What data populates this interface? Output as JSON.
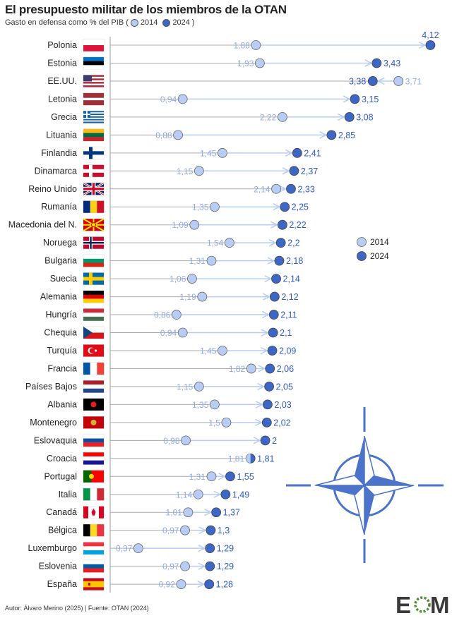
{
  "title": "El presupuesto militar de los miembros de la OTAN",
  "subtitle": {
    "prefix": "Gasto en defensa como % del PIB (",
    "label_2014": "2014",
    "label_2024": "2024",
    "suffix": ")"
  },
  "footer": "Autor: Álvaro Merino (2025) | Fuente: OTAN (2024)",
  "logo": "EOM",
  "colors": {
    "c2014": "#b7cdf5",
    "c2024": "#3d67c4",
    "label2014": "#8fa9e8",
    "label2024": "#2f5bc8",
    "axis": "#999999",
    "nato": "#4a73c9",
    "logo_text": "#3a3a3a",
    "logo_ring": "#4e8a2e"
  },
  "chart_data": {
    "type": "dumbbell",
    "title": "El presupuesto militar de los miembros de la OTAN",
    "unit": "% del PIB",
    "legend": {
      "position": "right",
      "entries": [
        "2014",
        "2024"
      ]
    },
    "series_names": [
      "2014",
      "2024"
    ],
    "rows": [
      {
        "country": "Polonia",
        "v2014": "1,88",
        "v2024": "4,12",
        "flag": {
          "dir": "h",
          "c": [
            "#ffffff",
            "#dc143c"
          ]
        }
      },
      {
        "country": "Estonia",
        "v2014": "1,93",
        "v2024": "3,43",
        "flag": {
          "dir": "h",
          "c": [
            "#0072ce",
            "#000000",
            "#ffffff"
          ]
        }
      },
      {
        "country": "EE.UU.",
        "v2014": "3,71",
        "v2024": "3,38",
        "flag": {
          "dir": "us",
          "c": [
            "#b22234",
            "#ffffff",
            "#3c3b6e"
          ]
        }
      },
      {
        "country": "Letonia",
        "v2014": "0,94",
        "v2024": "3,15",
        "flag": {
          "dir": "h",
          "c": [
            "#9e3039",
            "#9e3039",
            "#ffffff",
            "#9e3039",
            "#9e3039"
          ]
        }
      },
      {
        "country": "Grecia",
        "v2014": "2,22",
        "v2024": "3,08",
        "flag": {
          "dir": "gr",
          "c": [
            "#0d5eaf",
            "#ffffff"
          ]
        }
      },
      {
        "country": "Lituania",
        "v2014": "0,88",
        "v2024": "2,85",
        "flag": {
          "dir": "h",
          "c": [
            "#fdb913",
            "#006a44",
            "#c1272d"
          ]
        }
      },
      {
        "country": "Finlandia",
        "v2014": "1,45",
        "v2024": "2,41",
        "flag": {
          "dir": "nordic",
          "c": [
            "#ffffff",
            "#003580"
          ]
        }
      },
      {
        "country": "Dinamarca",
        "v2014": "1,15",
        "v2024": "2,37",
        "flag": {
          "dir": "nordic",
          "c": [
            "#c8102e",
            "#ffffff"
          ]
        }
      },
      {
        "country": "Reino Unido",
        "v2014": "2,14",
        "v2024": "2,33",
        "flag": {
          "dir": "uk",
          "c": [
            "#012169",
            "#ffffff",
            "#c8102e"
          ]
        }
      },
      {
        "country": "Rumanía",
        "v2014": "1,35",
        "v2024": "2,25",
        "flag": {
          "dir": "v",
          "c": [
            "#002b7f",
            "#fcd116",
            "#ce1126"
          ]
        }
      },
      {
        "country": "Macedonia del N.",
        "v2014": "1,09",
        "v2024": "2,22",
        "flag": {
          "dir": "sun",
          "c": [
            "#d20000",
            "#ffe600"
          ]
        }
      },
      {
        "country": "Noruega",
        "v2014": "1,54",
        "v2024": "2,2",
        "flag": {
          "dir": "nordic2",
          "c": [
            "#ba0c2f",
            "#ffffff",
            "#00205b"
          ]
        }
      },
      {
        "country": "Bulgaria",
        "v2014": "1,31",
        "v2024": "2,18",
        "flag": {
          "dir": "h",
          "c": [
            "#ffffff",
            "#00966e",
            "#d62612"
          ]
        }
      },
      {
        "country": "Suecia",
        "v2014": "1,06",
        "v2024": "2,14",
        "flag": {
          "dir": "nordic",
          "c": [
            "#006aa7",
            "#fecc00"
          ]
        }
      },
      {
        "country": "Alemania",
        "v2014": "1,19",
        "v2024": "2,12",
        "flag": {
          "dir": "h",
          "c": [
            "#000000",
            "#dd0000",
            "#ffce00"
          ]
        }
      },
      {
        "country": "Hungría",
        "v2014": "0,86",
        "v2024": "2,11",
        "flag": {
          "dir": "h",
          "c": [
            "#ce2939",
            "#ffffff",
            "#477050"
          ]
        }
      },
      {
        "country": "Chequia",
        "v2014": "0,94",
        "v2024": "2,1",
        "flag": {
          "dir": "cz",
          "c": [
            "#ffffff",
            "#d7141a",
            "#11457e"
          ]
        }
      },
      {
        "country": "Turquía",
        "v2014": "1,45",
        "v2024": "2,09",
        "flag": {
          "dir": "tr",
          "c": [
            "#e30a17",
            "#ffffff"
          ]
        }
      },
      {
        "country": "Francia",
        "v2014": "1,82",
        "v2024": "2,06",
        "flag": {
          "dir": "v",
          "c": [
            "#0055a4",
            "#ffffff",
            "#ef4135"
          ]
        }
      },
      {
        "country": "Países Bajos",
        "v2014": "1,15",
        "v2024": "2,05",
        "flag": {
          "dir": "h",
          "c": [
            "#ae1c28",
            "#ffffff",
            "#21468b"
          ]
        }
      },
      {
        "country": "Albania",
        "v2014": "1,35",
        "v2024": "2,03",
        "flag": {
          "dir": "emb",
          "c": [
            "#e41e20",
            "#000000"
          ]
        }
      },
      {
        "country": "Montenegro",
        "v2014": "1,5",
        "v2024": "2,02",
        "flag": {
          "dir": "emb",
          "c": [
            "#d3ae3b",
            "#c40308"
          ]
        }
      },
      {
        "country": "Eslovaquia",
        "v2014": "0,98",
        "v2024": "2",
        "flag": {
          "dir": "h",
          "c": [
            "#ffffff",
            "#0b4ea2",
            "#ee1c25"
          ]
        }
      },
      {
        "country": "Croacia",
        "v2014": "1,81",
        "v2024": "1,81",
        "flag": {
          "dir": "h",
          "c": [
            "#ff0000",
            "#ffffff",
            "#171796"
          ]
        }
      },
      {
        "country": "Portugal",
        "v2014": "1,31",
        "v2024": "1,55",
        "flag": {
          "dir": "pt",
          "c": [
            "#006600",
            "#ff0000"
          ]
        }
      },
      {
        "country": "Italia",
        "v2014": "1,14",
        "v2024": "1,49",
        "flag": {
          "dir": "v",
          "c": [
            "#009246",
            "#ffffff",
            "#ce2b37"
          ]
        }
      },
      {
        "country": "Canadá",
        "v2014": "1,01",
        "v2024": "1,37",
        "flag": {
          "dir": "ca",
          "c": [
            "#d80621",
            "#ffffff"
          ]
        }
      },
      {
        "country": "Bélgica",
        "v2014": "0,97",
        "v2024": "1,3",
        "flag": {
          "dir": "v",
          "c": [
            "#000000",
            "#fdda24",
            "#ef3340"
          ]
        }
      },
      {
        "country": "Luxemburgo",
        "v2014": "0,37",
        "v2024": "1,29",
        "flag": {
          "dir": "h",
          "c": [
            "#ef3340",
            "#ffffff",
            "#00a3e0"
          ]
        }
      },
      {
        "country": "Eslovenia",
        "v2014": "0,97",
        "v2024": "1,29",
        "flag": {
          "dir": "h",
          "c": [
            "#ffffff",
            "#005da4",
            "#ed1c24"
          ]
        }
      },
      {
        "country": "España",
        "v2014": "0,92",
        "v2024": "1,28",
        "flag": {
          "dir": "es",
          "c": [
            "#c60b1e",
            "#ffc400"
          ]
        }
      }
    ]
  }
}
